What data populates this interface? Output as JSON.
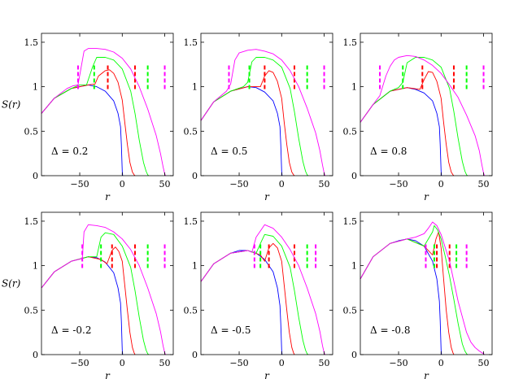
{
  "figure": {
    "y_axis_label": "S(r)",
    "x_axis_label": "r"
  },
  "chart_data": [
    {
      "type": "line",
      "annotation": "Δ = 0.2",
      "xlim": [
        -95,
        60
      ],
      "ylim": [
        0,
        1.6
      ],
      "xticks": [
        -50,
        0,
        50
      ],
      "yticks": [
        0,
        0.5,
        1,
        1.5
      ],
      "grid": false,
      "series": [
        {
          "color": "#0000ff",
          "x": [
            -95,
            -80,
            -60,
            -40,
            -30,
            -20,
            -10,
            -5,
            -2,
            -1,
            0,
            0.5
          ],
          "y": [
            0.7,
            0.87,
            0.98,
            1.02,
            1.0,
            0.95,
            0.84,
            0.7,
            0.55,
            0.35,
            0.05,
            0
          ],
          "markers": []
        },
        {
          "color": "#ff0000",
          "x": [
            -95,
            -80,
            -60,
            -40,
            -32,
            -28,
            -20,
            -15,
            -10,
            -5,
            0,
            3,
            6,
            9,
            12,
            14,
            15
          ],
          "y": [
            0.7,
            0.87,
            0.98,
            1.02,
            1.03,
            1.12,
            1.18,
            1.19,
            1.15,
            1.05,
            0.85,
            0.6,
            0.35,
            0.15,
            0.04,
            0.01,
            0
          ],
          "markers": [
            -17,
            15
          ]
        },
        {
          "color": "#00ff00",
          "x": [
            -95,
            -80,
            -60,
            -50,
            -42,
            -35,
            -30,
            -20,
            -10,
            0,
            10,
            15,
            20,
            25,
            28,
            30,
            31
          ],
          "y": [
            0.7,
            0.87,
            0.98,
            1.02,
            1.02,
            1.22,
            1.33,
            1.33,
            1.3,
            1.2,
            0.95,
            0.7,
            0.4,
            0.15,
            0.05,
            0.01,
            0
          ],
          "markers": [
            -33,
            30
          ]
        },
        {
          "color": "#ff00ff",
          "x": [
            -95,
            -80,
            -65,
            -58,
            -52,
            -45,
            -40,
            -30,
            -20,
            -10,
            0,
            10,
            20,
            30,
            40,
            45,
            48,
            50,
            51
          ],
          "y": [
            0.7,
            0.87,
            0.98,
            1.01,
            1.02,
            1.4,
            1.43,
            1.43,
            1.42,
            1.39,
            1.32,
            1.2,
            1.0,
            0.75,
            0.45,
            0.25,
            0.1,
            0.02,
            0
          ],
          "markers": [
            -52,
            50
          ]
        }
      ]
    },
    {
      "type": "line",
      "annotation": "Δ = 0.5",
      "xlim": [
        -95,
        60
      ],
      "ylim": [
        0,
        1.6
      ],
      "xticks": [
        -50,
        0,
        50
      ],
      "yticks": [
        0,
        0.5,
        1,
        1.5
      ],
      "grid": false,
      "series": [
        {
          "color": "#0000ff",
          "x": [
            -95,
            -80,
            -60,
            -40,
            -30,
            -20,
            -10,
            -5,
            -2,
            -1,
            0,
            0.5
          ],
          "y": [
            0.62,
            0.83,
            0.95,
            1.0,
            0.99,
            0.94,
            0.84,
            0.7,
            0.55,
            0.35,
            0.05,
            0
          ],
          "markers": []
        },
        {
          "color": "#ff0000",
          "x": [
            -95,
            -80,
            -60,
            -40,
            -25,
            -20,
            -15,
            -10,
            -5,
            0,
            3,
            6,
            9,
            12,
            14,
            15
          ],
          "y": [
            0.62,
            0.83,
            0.95,
            1.0,
            1.0,
            1.12,
            1.18,
            1.16,
            1.06,
            0.87,
            0.6,
            0.35,
            0.15,
            0.04,
            0.01,
            0
          ],
          "markers": [
            -20,
            15
          ]
        },
        {
          "color": "#00ff00",
          "x": [
            -95,
            -80,
            -60,
            -45,
            -40,
            -35,
            -30,
            -20,
            -10,
            0,
            10,
            15,
            20,
            25,
            28,
            30,
            31
          ],
          "y": [
            0.62,
            0.83,
            0.95,
            1.0,
            1.05,
            1.28,
            1.33,
            1.33,
            1.3,
            1.22,
            0.98,
            0.72,
            0.42,
            0.16,
            0.05,
            0.01,
            0
          ],
          "markers": [
            -38,
            30
          ]
        },
        {
          "color": "#ff00ff",
          "x": [
            -95,
            -80,
            -65,
            -60,
            -55,
            -50,
            -40,
            -30,
            -20,
            -10,
            0,
            10,
            20,
            30,
            40,
            45,
            48,
            50,
            51
          ],
          "y": [
            0.62,
            0.83,
            0.95,
            1.03,
            1.3,
            1.38,
            1.41,
            1.42,
            1.4,
            1.37,
            1.3,
            1.18,
            1.0,
            0.76,
            0.48,
            0.28,
            0.12,
            0.03,
            0
          ],
          "markers": [
            -62,
            50
          ]
        }
      ]
    },
    {
      "type": "line",
      "annotation": "Δ = 0.8",
      "xlim": [
        -95,
        60
      ],
      "ylim": [
        0,
        1.6
      ],
      "xticks": [
        -50,
        0,
        50
      ],
      "yticks": [
        0,
        0.5,
        1,
        1.5
      ],
      "grid": false,
      "series": [
        {
          "color": "#0000ff",
          "x": [
            -95,
            -80,
            -60,
            -40,
            -30,
            -20,
            -10,
            -5,
            -2,
            -1,
            0,
            0.5
          ],
          "y": [
            0.6,
            0.8,
            0.95,
            0.99,
            0.97,
            0.93,
            0.84,
            0.7,
            0.55,
            0.35,
            0.05,
            0
          ],
          "markers": []
        },
        {
          "color": "#ff0000",
          "x": [
            -95,
            -80,
            -60,
            -40,
            -25,
            -20,
            -15,
            -10,
            -5,
            0,
            3,
            6,
            9,
            12,
            14,
            15
          ],
          "y": [
            0.6,
            0.8,
            0.95,
            0.99,
            0.97,
            1.08,
            1.17,
            1.16,
            1.06,
            0.87,
            0.6,
            0.35,
            0.15,
            0.04,
            0.01,
            0
          ],
          "markers": [
            -22,
            15
          ]
        },
        {
          "color": "#00ff00",
          "x": [
            -95,
            -80,
            -60,
            -50,
            -45,
            -40,
            -30,
            -20,
            -10,
            0,
            10,
            15,
            20,
            25,
            28,
            30,
            31
          ],
          "y": [
            0.6,
            0.8,
            0.95,
            0.99,
            1.05,
            1.27,
            1.33,
            1.33,
            1.3,
            1.22,
            0.98,
            0.72,
            0.42,
            0.16,
            0.05,
            0.01,
            0
          ],
          "markers": [
            -45,
            30
          ]
        },
        {
          "color": "#ff00ff",
          "x": [
            -95,
            -80,
            -72,
            -65,
            -60,
            -55,
            -50,
            -40,
            -30,
            -20,
            -10,
            0,
            10,
            20,
            30,
            40,
            45,
            48,
            50,
            51
          ],
          "y": [
            0.6,
            0.8,
            0.9,
            1.12,
            1.23,
            1.3,
            1.33,
            1.35,
            1.34,
            1.3,
            1.24,
            1.15,
            1.02,
            0.88,
            0.68,
            0.45,
            0.28,
            0.12,
            0.03,
            0
          ],
          "markers": [
            -72,
            50
          ]
        }
      ]
    },
    {
      "type": "line",
      "annotation": "Δ = -0.2",
      "xlim": [
        -95,
        60
      ],
      "ylim": [
        0,
        1.6
      ],
      "xticks": [
        -50,
        0,
        50
      ],
      "yticks": [
        0,
        0.5,
        1,
        1.5
      ],
      "grid": false,
      "series": [
        {
          "color": "#0000ff",
          "x": [
            -95,
            -80,
            -60,
            -40,
            -30,
            -20,
            -10,
            -5,
            -2,
            -1,
            0,
            0.5
          ],
          "y": [
            0.75,
            0.93,
            1.05,
            1.1,
            1.09,
            1.04,
            0.92,
            0.75,
            0.58,
            0.38,
            0.05,
            0
          ],
          "markers": []
        },
        {
          "color": "#ff0000",
          "x": [
            -95,
            -80,
            -60,
            -40,
            -25,
            -18,
            -12,
            -8,
            -4,
            0,
            3,
            6,
            9,
            12,
            14,
            15
          ],
          "y": [
            0.75,
            0.93,
            1.05,
            1.1,
            1.07,
            1.02,
            1.17,
            1.21,
            1.16,
            1.05,
            0.78,
            0.5,
            0.25,
            0.08,
            0.02,
            0
          ],
          "markers": [
            -12,
            15
          ]
        },
        {
          "color": "#00ff00",
          "x": [
            -95,
            -80,
            -60,
            -40,
            -30,
            -25,
            -20,
            -10,
            0,
            10,
            15,
            20,
            25,
            28,
            30,
            31
          ],
          "y": [
            0.75,
            0.93,
            1.05,
            1.1,
            1.1,
            1.32,
            1.37,
            1.35,
            1.22,
            0.98,
            0.72,
            0.42,
            0.16,
            0.05,
            0.01,
            0
          ],
          "markers": [
            -25,
            30
          ]
        },
        {
          "color": "#ff00ff",
          "x": [
            -95,
            -80,
            -60,
            -47,
            -45,
            -40,
            -30,
            -20,
            -10,
            0,
            10,
            20,
            30,
            40,
            45,
            48,
            50,
            51
          ],
          "y": [
            0.75,
            0.93,
            1.05,
            1.08,
            1.38,
            1.46,
            1.45,
            1.43,
            1.38,
            1.3,
            1.18,
            1.0,
            0.75,
            0.46,
            0.26,
            0.1,
            0.02,
            0
          ],
          "markers": [
            -47,
            50
          ]
        }
      ]
    },
    {
      "type": "line",
      "annotation": "Δ = -0.5",
      "xlim": [
        -95,
        60
      ],
      "ylim": [
        0,
        1.6
      ],
      "xticks": [
        -50,
        0,
        50
      ],
      "yticks": [
        0,
        0.5,
        1,
        1.5
      ],
      "grid": false,
      "series": [
        {
          "color": "#0000ff",
          "x": [
            -95,
            -80,
            -60,
            -50,
            -40,
            -30,
            -20,
            -10,
            -5,
            -2,
            -1,
            0,
            0.5
          ],
          "y": [
            0.82,
            1.02,
            1.14,
            1.17,
            1.17,
            1.14,
            1.07,
            0.93,
            0.75,
            0.55,
            0.35,
            0.05,
            0
          ],
          "markers": []
        },
        {
          "color": "#ff0000",
          "x": [
            -95,
            -80,
            -60,
            -40,
            -25,
            -20,
            -15,
            -10,
            -5,
            0,
            3,
            6,
            9,
            12,
            14,
            15
          ],
          "y": [
            0.82,
            1.02,
            1.14,
            1.17,
            1.12,
            1.05,
            1.2,
            1.25,
            1.2,
            1.05,
            0.78,
            0.5,
            0.25,
            0.08,
            0.02,
            0
          ],
          "markers": [
            -15,
            15
          ]
        },
        {
          "color": "#00ff00",
          "x": [
            -95,
            -80,
            -60,
            -40,
            -30,
            -25,
            -20,
            -10,
            0,
            10,
            15,
            20,
            25,
            28,
            30,
            31
          ],
          "y": [
            0.82,
            1.02,
            1.14,
            1.17,
            1.14,
            1.25,
            1.35,
            1.33,
            1.22,
            0.98,
            0.72,
            0.42,
            0.16,
            0.05,
            0.01,
            0
          ],
          "markers": [
            -25,
            30
          ]
        },
        {
          "color": "#ff00ff",
          "x": [
            -95,
            -80,
            -60,
            -40,
            -35,
            -30,
            -20,
            -10,
            0,
            10,
            20,
            30,
            40,
            45,
            48,
            50,
            51
          ],
          "y": [
            0.82,
            1.02,
            1.14,
            1.17,
            1.15,
            1.32,
            1.46,
            1.42,
            1.32,
            1.18,
            1.0,
            0.75,
            0.46,
            0.26,
            0.1,
            0.02,
            0
          ],
          "markers": [
            -32,
            40
          ]
        }
      ]
    },
    {
      "type": "line",
      "annotation": "Δ = -0.8",
      "xlim": [
        -95,
        60
      ],
      "ylim": [
        0,
        1.6
      ],
      "xticks": [
        -50,
        0,
        50
      ],
      "yticks": [
        0,
        0.5,
        1,
        1.5
      ],
      "grid": false,
      "series": [
        {
          "color": "#0000ff",
          "x": [
            -95,
            -80,
            -60,
            -50,
            -40,
            -30,
            -20,
            -10,
            -5,
            -2,
            -1,
            0,
            0.5
          ],
          "y": [
            0.85,
            1.1,
            1.25,
            1.28,
            1.3,
            1.28,
            1.22,
            1.05,
            0.85,
            0.6,
            0.38,
            0.05,
            0
          ],
          "markers": []
        },
        {
          "color": "#ff0000",
          "x": [
            -95,
            -80,
            -60,
            -40,
            -20,
            -10,
            -6,
            -3,
            0,
            3,
            6,
            9,
            12,
            14,
            15
          ],
          "y": [
            0.85,
            1.1,
            1.25,
            1.3,
            1.22,
            1.12,
            1.3,
            1.38,
            1.2,
            0.85,
            0.5,
            0.25,
            0.08,
            0.02,
            0
          ],
          "markers": [
            -5,
            10
          ]
        },
        {
          "color": "#00ff00",
          "x": [
            -95,
            -80,
            -60,
            -40,
            -20,
            -10,
            -8,
            -4,
            0,
            5,
            10,
            15,
            20,
            25,
            28,
            30,
            31
          ],
          "y": [
            0.85,
            1.1,
            1.25,
            1.3,
            1.22,
            1.38,
            1.45,
            1.4,
            1.3,
            1.1,
            0.88,
            0.62,
            0.35,
            0.12,
            0.04,
            0.01,
            0
          ],
          "markers": [
            -8,
            18
          ]
        },
        {
          "color": "#ff00ff",
          "x": [
            -95,
            -80,
            -60,
            -40,
            -30,
            -20,
            -15,
            -10,
            -5,
            0,
            10,
            20,
            30,
            35,
            40,
            45,
            48,
            50,
            51
          ],
          "y": [
            0.85,
            1.1,
            1.25,
            1.3,
            1.32,
            1.36,
            1.42,
            1.49,
            1.45,
            1.35,
            1.05,
            0.6,
            0.25,
            0.14,
            0.08,
            0.04,
            0.02,
            0.01,
            0
          ],
          "markers": [
            -18,
            30
          ]
        }
      ]
    }
  ]
}
